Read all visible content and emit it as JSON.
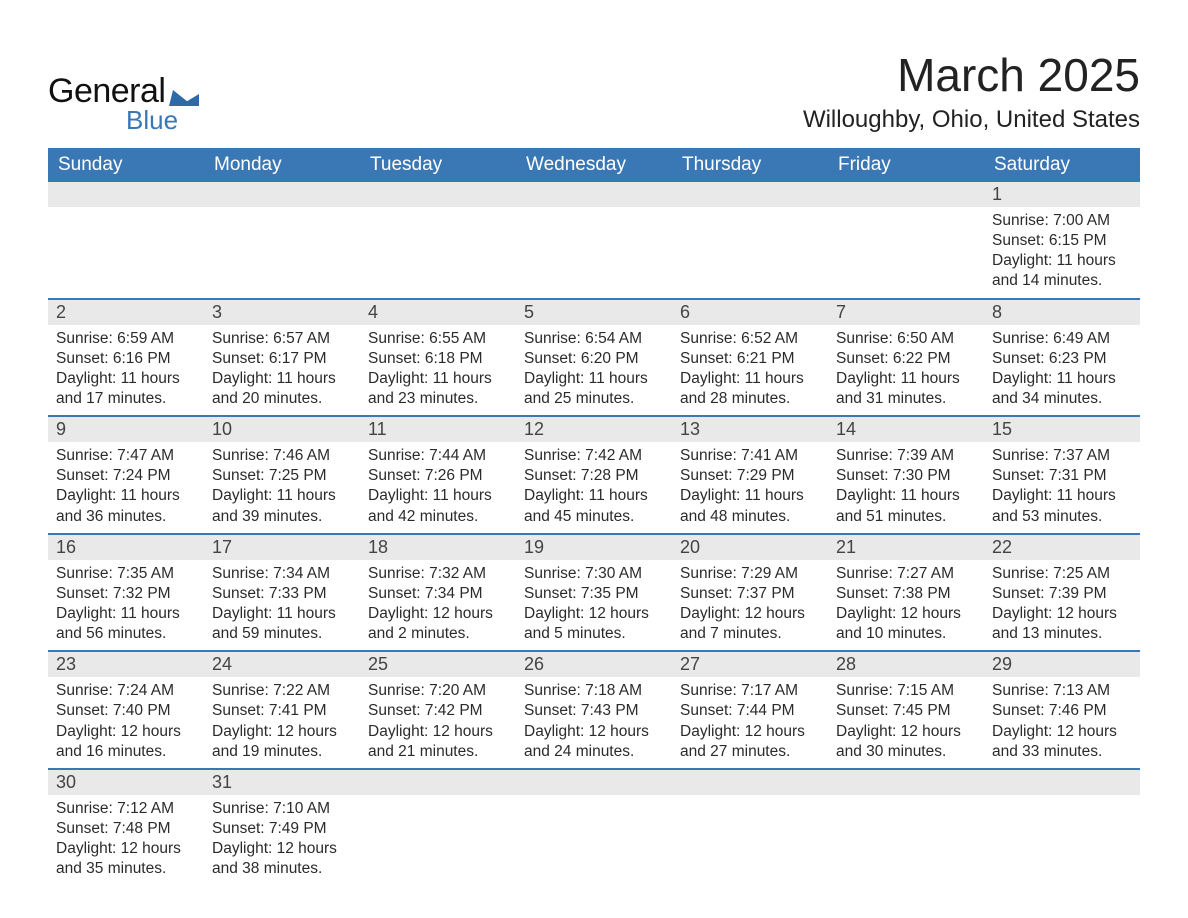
{
  "brand": {
    "name1": "General",
    "name2": "Blue"
  },
  "colors": {
    "header_blue": "#3a78b5",
    "row_divider": "#3a78b5",
    "daynum_bg": "#e9e9e9",
    "text": "#2b2b2b",
    "bg": "#ffffff"
  },
  "title": {
    "month": "March 2025",
    "location": "Willoughby, Ohio, United States"
  },
  "weekdays": [
    "Sunday",
    "Monday",
    "Tuesday",
    "Wednesday",
    "Thursday",
    "Friday",
    "Saturday"
  ],
  "labels": {
    "sunrise": "Sunrise:",
    "sunset": "Sunset:",
    "daylight": "Daylight:"
  },
  "weeks": [
    [
      null,
      null,
      null,
      null,
      null,
      null,
      {
        "n": "1",
        "sunrise": "7:00 AM",
        "sunset": "6:15 PM",
        "daylight": "11 hours and 14 minutes."
      }
    ],
    [
      {
        "n": "2",
        "sunrise": "6:59 AM",
        "sunset": "6:16 PM",
        "daylight": "11 hours and 17 minutes."
      },
      {
        "n": "3",
        "sunrise": "6:57 AM",
        "sunset": "6:17 PM",
        "daylight": "11 hours and 20 minutes."
      },
      {
        "n": "4",
        "sunrise": "6:55 AM",
        "sunset": "6:18 PM",
        "daylight": "11 hours and 23 minutes."
      },
      {
        "n": "5",
        "sunrise": "6:54 AM",
        "sunset": "6:20 PM",
        "daylight": "11 hours and 25 minutes."
      },
      {
        "n": "6",
        "sunrise": "6:52 AM",
        "sunset": "6:21 PM",
        "daylight": "11 hours and 28 minutes."
      },
      {
        "n": "7",
        "sunrise": "6:50 AM",
        "sunset": "6:22 PM",
        "daylight": "11 hours and 31 minutes."
      },
      {
        "n": "8",
        "sunrise": "6:49 AM",
        "sunset": "6:23 PM",
        "daylight": "11 hours and 34 minutes."
      }
    ],
    [
      {
        "n": "9",
        "sunrise": "7:47 AM",
        "sunset": "7:24 PM",
        "daylight": "11 hours and 36 minutes."
      },
      {
        "n": "10",
        "sunrise": "7:46 AM",
        "sunset": "7:25 PM",
        "daylight": "11 hours and 39 minutes."
      },
      {
        "n": "11",
        "sunrise": "7:44 AM",
        "sunset": "7:26 PM",
        "daylight": "11 hours and 42 minutes."
      },
      {
        "n": "12",
        "sunrise": "7:42 AM",
        "sunset": "7:28 PM",
        "daylight": "11 hours and 45 minutes."
      },
      {
        "n": "13",
        "sunrise": "7:41 AM",
        "sunset": "7:29 PM",
        "daylight": "11 hours and 48 minutes."
      },
      {
        "n": "14",
        "sunrise": "7:39 AM",
        "sunset": "7:30 PM",
        "daylight": "11 hours and 51 minutes."
      },
      {
        "n": "15",
        "sunrise": "7:37 AM",
        "sunset": "7:31 PM",
        "daylight": "11 hours and 53 minutes."
      }
    ],
    [
      {
        "n": "16",
        "sunrise": "7:35 AM",
        "sunset": "7:32 PM",
        "daylight": "11 hours and 56 minutes."
      },
      {
        "n": "17",
        "sunrise": "7:34 AM",
        "sunset": "7:33 PM",
        "daylight": "11 hours and 59 minutes."
      },
      {
        "n": "18",
        "sunrise": "7:32 AM",
        "sunset": "7:34 PM",
        "daylight": "12 hours and 2 minutes."
      },
      {
        "n": "19",
        "sunrise": "7:30 AM",
        "sunset": "7:35 PM",
        "daylight": "12 hours and 5 minutes."
      },
      {
        "n": "20",
        "sunrise": "7:29 AM",
        "sunset": "7:37 PM",
        "daylight": "12 hours and 7 minutes."
      },
      {
        "n": "21",
        "sunrise": "7:27 AM",
        "sunset": "7:38 PM",
        "daylight": "12 hours and 10 minutes."
      },
      {
        "n": "22",
        "sunrise": "7:25 AM",
        "sunset": "7:39 PM",
        "daylight": "12 hours and 13 minutes."
      }
    ],
    [
      {
        "n": "23",
        "sunrise": "7:24 AM",
        "sunset": "7:40 PM",
        "daylight": "12 hours and 16 minutes."
      },
      {
        "n": "24",
        "sunrise": "7:22 AM",
        "sunset": "7:41 PM",
        "daylight": "12 hours and 19 minutes."
      },
      {
        "n": "25",
        "sunrise": "7:20 AM",
        "sunset": "7:42 PM",
        "daylight": "12 hours and 21 minutes."
      },
      {
        "n": "26",
        "sunrise": "7:18 AM",
        "sunset": "7:43 PM",
        "daylight": "12 hours and 24 minutes."
      },
      {
        "n": "27",
        "sunrise": "7:17 AM",
        "sunset": "7:44 PM",
        "daylight": "12 hours and 27 minutes."
      },
      {
        "n": "28",
        "sunrise": "7:15 AM",
        "sunset": "7:45 PM",
        "daylight": "12 hours and 30 minutes."
      },
      {
        "n": "29",
        "sunrise": "7:13 AM",
        "sunset": "7:46 PM",
        "daylight": "12 hours and 33 minutes."
      }
    ],
    [
      {
        "n": "30",
        "sunrise": "7:12 AM",
        "sunset": "7:48 PM",
        "daylight": "12 hours and 35 minutes."
      },
      {
        "n": "31",
        "sunrise": "7:10 AM",
        "sunset": "7:49 PM",
        "daylight": "12 hours and 38 minutes."
      },
      null,
      null,
      null,
      null,
      null
    ]
  ]
}
